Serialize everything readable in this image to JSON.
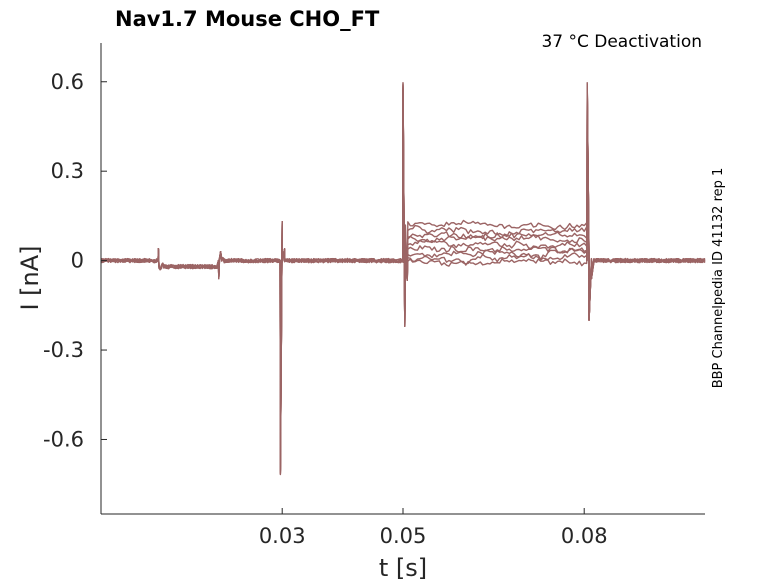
{
  "chart_data": {
    "type": "line",
    "title": "Nav1.7  Mouse  CHO_FT",
    "subtitle": "37 °C  Deactivation",
    "side_label": "BBP Channelpedia ID 41132 rep 1",
    "xlabel": "t [s]",
    "ylabel": "I [nA]",
    "xlim": [
      0.0,
      0.1
    ],
    "ylim": [
      -0.85,
      0.73
    ],
    "x_ticks": [
      0.03,
      0.05,
      0.08
    ],
    "x_tick_labels": [
      "0.03",
      "0.05",
      "0.08"
    ],
    "y_ticks": [
      0.6,
      0.3,
      0,
      -0.3,
      -0.6
    ],
    "y_tick_labels": [
      "0.6",
      "0.3",
      "0",
      "-0.3",
      "-0.6"
    ],
    "grid": false,
    "trace_color": "#9b6464",
    "features": {
      "holding_current": 0.0,
      "step1_time": 0.0095,
      "step1_level": -0.02,
      "step2_time": 0.0195,
      "step2_level": 0.0,
      "activation_time": 0.0297,
      "activation_peak": -0.72,
      "activation_overshoot": 0.13,
      "test_pulse_time": 0.05,
      "test_pulse_peak": 0.6,
      "test_pulse_trough": -0.22,
      "tail_time": 0.0805,
      "tail_peak": 0.6,
      "tail_trough": -0.2
    },
    "series": [
      {
        "plateau": -0.005
      },
      {
        "plateau": 0.01
      },
      {
        "plateau": 0.025
      },
      {
        "plateau": 0.04
      },
      {
        "plateau": 0.055
      },
      {
        "plateau": 0.07
      },
      {
        "plateau": 0.085
      },
      {
        "plateau": 0.1
      },
      {
        "plateau": 0.12
      }
    ]
  }
}
